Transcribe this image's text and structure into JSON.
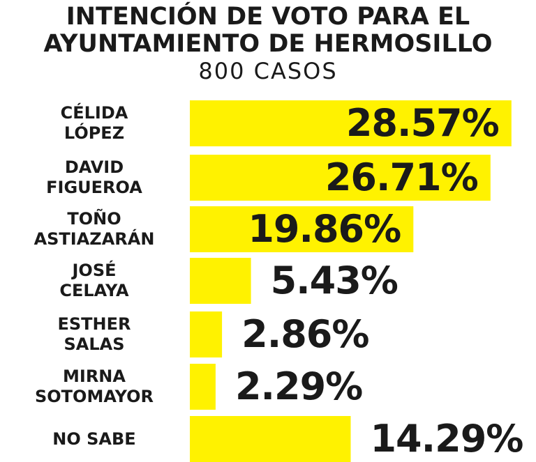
{
  "chart_data": {
    "type": "bar",
    "orientation": "horizontal",
    "title_line1": "INTENCIÓN DE VOTO PARA EL",
    "title_line2": "AYUNTAMIENTO DE HERMOSILLO",
    "subtitle": "800 CASOS",
    "categories": [
      "CÉLIDA\nLÓPEZ",
      "DAVID\nFIGUEROA",
      "TOÑO\nASTIAZARÁN",
      "JOSÉ\nCELAYA",
      "ESTHER\nSALAS",
      "MIRNA\nSOTOMAYOR",
      "NO SABE"
    ],
    "values": [
      28.57,
      26.71,
      19.86,
      5.43,
      2.86,
      2.29,
      14.29
    ],
    "value_labels": [
      "28.57%",
      "26.71%",
      "19.86%",
      "5.43%",
      "2.86%",
      "2.29%",
      "14.29%"
    ],
    "bar_color": "#fff200",
    "text_color": "#1a1a1a",
    "grid": false,
    "legend": "none"
  }
}
